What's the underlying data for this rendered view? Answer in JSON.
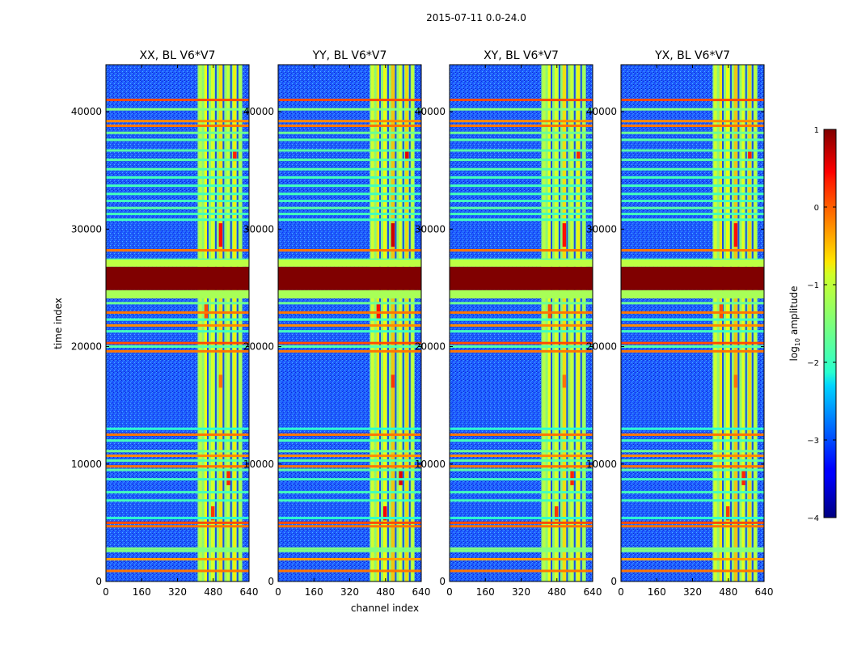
{
  "figure": {
    "suptitle": "2015-07-11 0.0-24.0",
    "ylabel": "time index",
    "xlabel": "channel index",
    "colorbar": {
      "label": "log10 amplitude",
      "label_main": "log",
      "label_sub": "10",
      "label_tail": " amplitude",
      "ticks": [
        {
          "value": 1,
          "label": "1"
        },
        {
          "value": 0,
          "label": "0"
        },
        {
          "value": -1,
          "label": "−1"
        },
        {
          "value": -2,
          "label": "−2"
        },
        {
          "value": -3,
          "label": "−3"
        },
        {
          "value": -4,
          "label": "−4"
        }
      ],
      "range": [
        -4,
        1
      ],
      "colormap": "jet"
    }
  },
  "chart_data": {
    "type": "heatmap",
    "title": "2015-07-11 0.0-24.0",
    "xlabel": "channel index",
    "ylabel": "time index",
    "xlim": [
      0,
      640
    ],
    "ylim": [
      0,
      44000
    ],
    "xticks": [
      0,
      160,
      320,
      480,
      640
    ],
    "yticks": [
      0,
      10000,
      20000,
      30000,
      40000
    ],
    "colorbar_range": [
      -4,
      1
    ],
    "panels": [
      {
        "name": "xx",
        "title": "XX, BL V6*V7"
      },
      {
        "name": "yy",
        "title": "YY, BL V6*V7"
      },
      {
        "name": "xy",
        "title": "XY, BL V6*V7"
      },
      {
        "name": "yx",
        "title": "YX, BL V6*V7"
      }
    ],
    "bright_channel_band": [
      410,
      610
    ],
    "saturated_time_band": [
      24800,
      26800
    ],
    "flagged_time_rows": [
      {
        "t": 41000,
        "v": 0.0
      },
      {
        "t": 40200,
        "v": -1.5
      },
      {
        "t": 39200,
        "v": -0.3
      },
      {
        "t": 38800,
        "v": -0.2
      },
      {
        "t": 38200,
        "v": -1.6
      },
      {
        "t": 37600,
        "v": -1.7
      },
      {
        "t": 36700,
        "v": -1.7
      },
      {
        "t": 35900,
        "v": -1.7
      },
      {
        "t": 35100,
        "v": -1.7
      },
      {
        "t": 34400,
        "v": -1.8
      },
      {
        "t": 33700,
        "v": -1.8
      },
      {
        "t": 33000,
        "v": -1.8
      },
      {
        "t": 32400,
        "v": -1.8
      },
      {
        "t": 31800,
        "v": -1.7
      },
      {
        "t": 31300,
        "v": -1.8
      },
      {
        "t": 30800,
        "v": -1.8
      },
      {
        "t": 28200,
        "v": -0.2
      },
      {
        "t": 27400,
        "v": -1.7
      },
      {
        "t": 27100,
        "v": 0.0
      },
      {
        "t": 24200,
        "v": -1.6
      },
      {
        "t": 23700,
        "v": -1.6
      },
      {
        "t": 22900,
        "v": -0.2
      },
      {
        "t": 22300,
        "v": -1.8
      },
      {
        "t": 21800,
        "v": -0.3
      },
      {
        "t": 21300,
        "v": -1.8
      },
      {
        "t": 20300,
        "v": 0.0
      },
      {
        "t": 20000,
        "v": -1.7
      },
      {
        "t": 19600,
        "v": -0.2
      },
      {
        "t": 13000,
        "v": -1.9
      },
      {
        "t": 12500,
        "v": -0.2
      },
      {
        "t": 12000,
        "v": -1.8
      },
      {
        "t": 11100,
        "v": -1.6
      },
      {
        "t": 10700,
        "v": -0.3
      },
      {
        "t": 10300,
        "v": -1.7
      },
      {
        "t": 9800,
        "v": -0.2
      },
      {
        "t": 9500,
        "v": -1.7
      },
      {
        "t": 8700,
        "v": -1.8
      },
      {
        "t": 7600,
        "v": -1.8
      },
      {
        "t": 6900,
        "v": -1.8
      },
      {
        "t": 5400,
        "v": -1.9
      },
      {
        "t": 5000,
        "v": 0.0
      },
      {
        "t": 4700,
        "v": -0.2
      },
      {
        "t": 2800,
        "v": -1.5
      },
      {
        "t": 2600,
        "v": -1.5
      },
      {
        "t": 1900,
        "v": -0.4
      },
      {
        "t": 900,
        "v": -0.2
      }
    ]
  }
}
